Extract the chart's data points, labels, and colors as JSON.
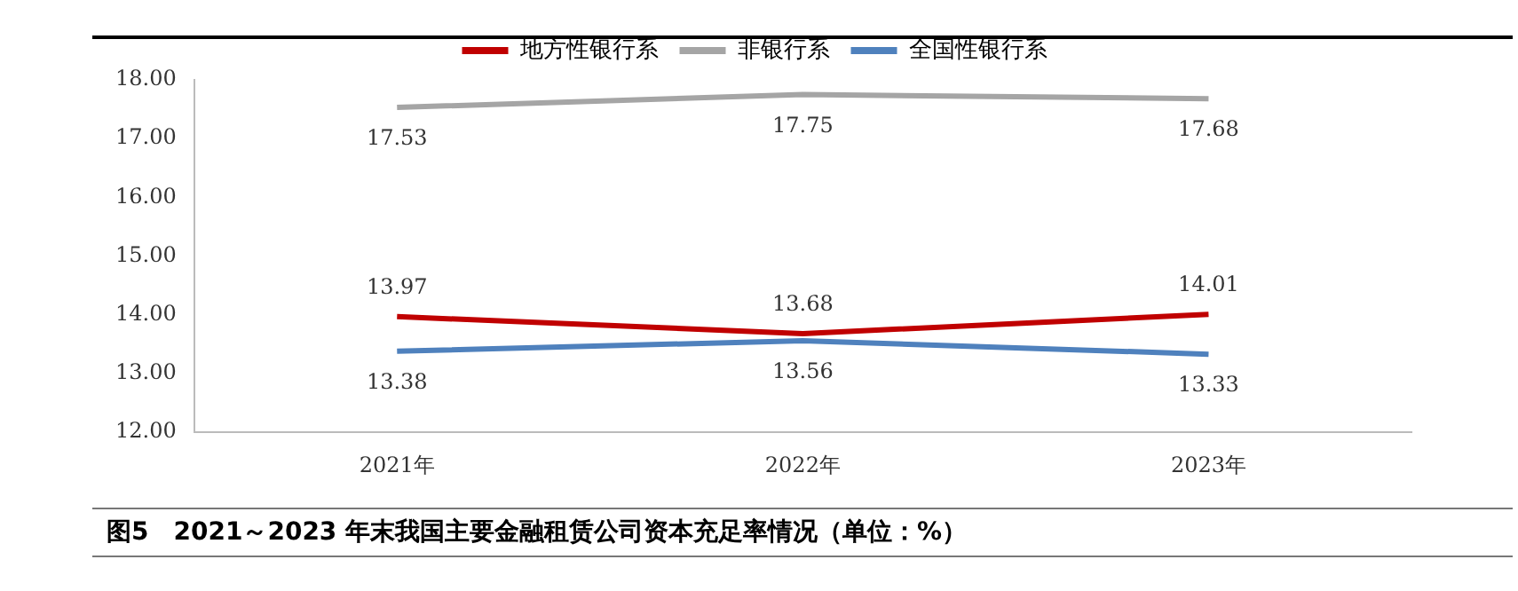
{
  "chart_data": {
    "type": "line",
    "title": "图5　2021～2023 年末我国主要金融租赁公司资本充足率情况（单位：%）",
    "categories": [
      "2021年",
      "2022年",
      "2023年"
    ],
    "series": [
      {
        "name": "地方性银行系",
        "color": "#c00000",
        "values": [
          13.97,
          13.68,
          14.01
        ]
      },
      {
        "name": "非银行系",
        "color": "#a5a5a5",
        "values": [
          17.53,
          17.75,
          17.68
        ]
      },
      {
        "name": "全国性银行系",
        "color": "#4f81bd",
        "values": [
          13.38,
          13.56,
          13.33
        ]
      }
    ],
    "ylim": [
      12,
      18
    ],
    "yticks": [
      {
        "value": 12,
        "label": "12.00"
      },
      {
        "value": 13,
        "label": "13.00"
      },
      {
        "value": 14,
        "label": "14.00"
      },
      {
        "value": 15,
        "label": "15.00"
      },
      {
        "value": 16,
        "label": "16.00"
      },
      {
        "value": 17,
        "label": "17.00"
      },
      {
        "value": 18,
        "label": "18.00"
      }
    ],
    "grid": false,
    "legend": "top",
    "marker": "none",
    "line_style": "solid",
    "data_labels": true
  }
}
